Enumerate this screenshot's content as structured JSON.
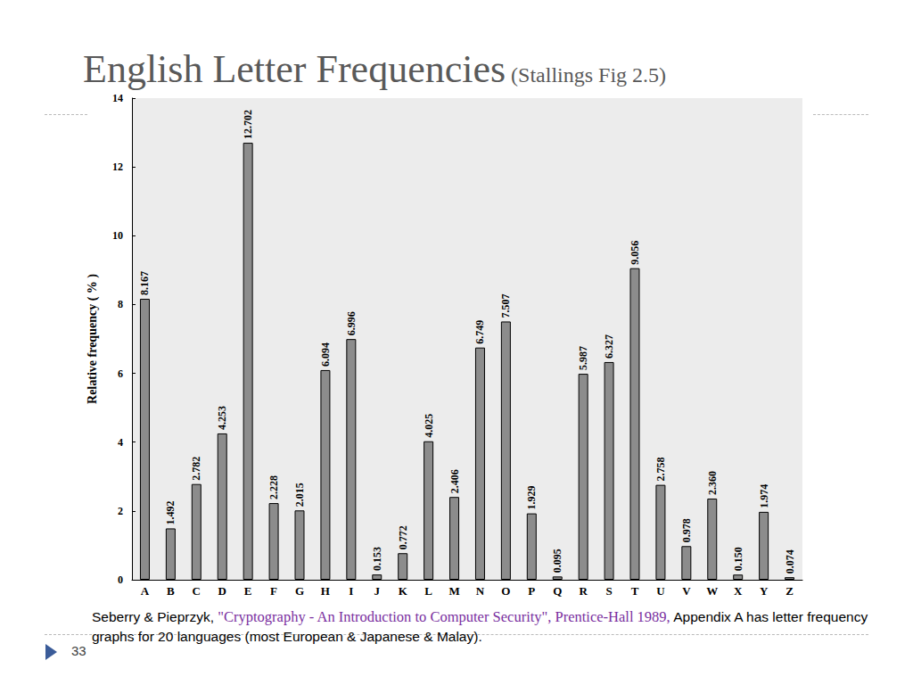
{
  "chart_data": {
    "type": "bar",
    "title": "English Letter Frequencies",
    "subtitle": "(Stallings Fig 2.5)",
    "y_label": "Relative frequency ( % )",
    "categories": [
      "A",
      "B",
      "C",
      "D",
      "E",
      "F",
      "G",
      "H",
      "I",
      "J",
      "K",
      "L",
      "M",
      "N",
      "O",
      "P",
      "Q",
      "R",
      "S",
      "T",
      "U",
      "V",
      "W",
      "X",
      "Y",
      "Z"
    ],
    "values": [
      8.167,
      1.492,
      2.782,
      4.253,
      12.702,
      2.228,
      2.015,
      6.094,
      6.996,
      0.153,
      0.772,
      4.025,
      2.406,
      6.749,
      7.507,
      1.929,
      0.095,
      5.987,
      6.327,
      9.056,
      2.758,
      0.978,
      2.36,
      0.15,
      1.974,
      0.074
    ],
    "value_labels": [
      "8.167",
      "1.492",
      "2.782",
      "4.253",
      "12.702",
      "2.228",
      "2.015",
      "6.094",
      "6.996",
      "0.153",
      "0.772",
      "4.025",
      "2.406",
      "6.749",
      "7.507",
      "1.929",
      "0.095",
      "5.987",
      "6.327",
      "9.056",
      "2.758",
      "0.978",
      "2.360",
      "0.150",
      "1.974",
      "0.074"
    ],
    "color": "#8c8c8c",
    "ylim": [
      0,
      14
    ],
    "yticks": [
      0,
      2,
      4,
      6,
      8,
      10,
      12,
      14
    ],
    "grid": false,
    "data_labels": true,
    "annotations": [
      "Seberry & Pieprzyk,",
      "\"Cryptography - An Introduction to Computer Security\", Prentice-Hall 1989,",
      "Appendix A has letter frequency graphs for 20 languages (most European & Japanese & Malay).",
      "33"
    ]
  }
}
